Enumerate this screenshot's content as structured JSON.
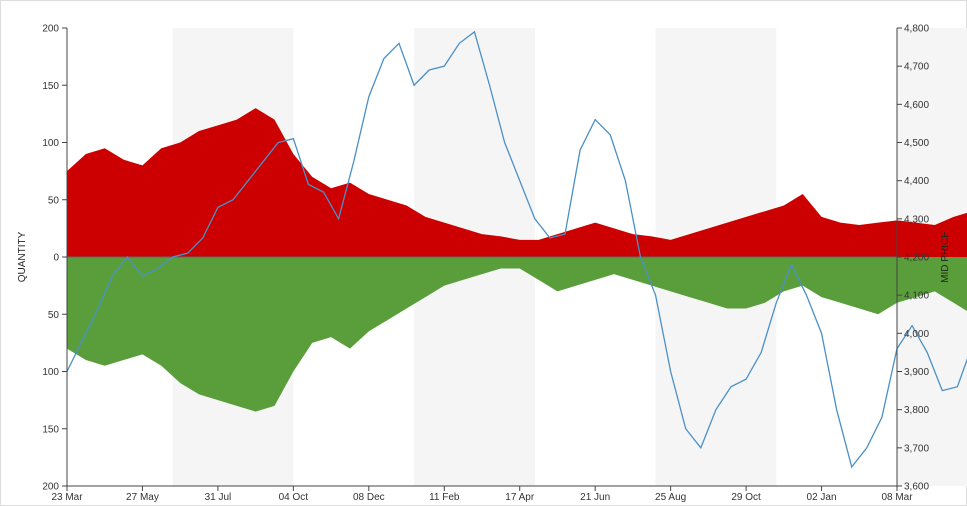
{
  "chart_data": {
    "type": "area",
    "title": "",
    "left_axis": {
      "label": "QUANTITY",
      "ticks": [
        "200",
        "150",
        "100",
        "50",
        "0",
        "50",
        "100",
        "150",
        "200"
      ],
      "range": [
        -200,
        200
      ]
    },
    "right_axis": {
      "label": "MID PRICE",
      "ticks": [
        "4,800",
        "4,700",
        "4,600",
        "4,500",
        "4,400",
        "4,300",
        "4,200",
        "4,100",
        "4,000",
        "3,900",
        "3,800",
        "3,700",
        "3,600"
      ],
      "range": [
        3600,
        4800
      ]
    },
    "x_ticks": [
      "23 Mar",
      "27 May",
      "31 Jul",
      "04 Oct",
      "08 Dec",
      "11 Feb",
      "17 Apr",
      "21 Jun",
      "25 Aug",
      "29 Oct",
      "02 Jan",
      "08 Mar"
    ],
    "shaded_bands": [
      [
        1.4,
        3.0
      ],
      [
        4.6,
        6.2
      ],
      [
        7.8,
        9.4
      ],
      [
        11.0,
        12.6
      ]
    ],
    "colors": {
      "bid": "#cc0000",
      "ask": "#5a9e3c",
      "price": "#4a90c8",
      "band": "#f5f5f5",
      "axis": "#444444"
    },
    "series": [
      {
        "name": "",
        "x": [
          0,
          0.25,
          0.5,
          0.75,
          1,
          1.25,
          1.5,
          1.75,
          2,
          2.25,
          2.5,
          2.75,
          3,
          3.25,
          3.5,
          3.75,
          4,
          4.25,
          4.5,
          4.75,
          5,
          5.25,
          5.5,
          5.75,
          6,
          6.25,
          6.5,
          6.75,
          7,
          7.25,
          7.5,
          7.75,
          8,
          8.25,
          8.5,
          8.75,
          9,
          9.25,
          9.5,
          9.75,
          10,
          10.25,
          10.5,
          10.75,
          11,
          11.25,
          11.5,
          11.75,
          12,
          12.25,
          12.5,
          12.75
        ],
        "values": [
          75,
          90,
          95,
          85,
          80,
          95,
          100,
          110,
          115,
          120,
          130,
          120,
          90,
          70,
          60,
          65,
          55,
          50,
          45,
          35,
          30,
          25,
          20,
          18,
          15,
          15,
          20,
          25,
          30,
          25,
          20,
          18,
          15,
          20,
          25,
          30,
          35,
          40,
          45,
          55,
          35,
          30,
          28,
          30,
          32,
          30,
          28,
          35,
          40,
          45,
          50,
          65
        ]
      },
      {
        "name": "",
        "x": [
          0,
          0.25,
          0.5,
          0.75,
          1,
          1.25,
          1.5,
          1.75,
          2,
          2.25,
          2.5,
          2.75,
          3,
          3.25,
          3.5,
          3.75,
          4,
          4.25,
          4.5,
          4.75,
          5,
          5.25,
          5.5,
          5.75,
          6,
          6.25,
          6.5,
          6.75,
          7,
          7.25,
          7.5,
          7.75,
          8,
          8.25,
          8.5,
          8.75,
          9,
          9.25,
          9.5,
          9.75,
          10,
          10.25,
          10.5,
          10.75,
          11,
          11.25,
          11.5,
          11.75,
          12,
          12.25,
          12.5,
          12.75
        ],
        "values": [
          -80,
          -90,
          -95,
          -90,
          -85,
          -95,
          -110,
          -120,
          -125,
          -130,
          -135,
          -130,
          -100,
          -75,
          -70,
          -80,
          -65,
          -55,
          -45,
          -35,
          -25,
          -20,
          -15,
          -10,
          -10,
          -20,
          -30,
          -25,
          -20,
          -15,
          -20,
          -25,
          -30,
          -35,
          -40,
          -45,
          -45,
          -40,
          -30,
          -25,
          -35,
          -40,
          -45,
          -50,
          -40,
          -35,
          -30,
          -40,
          -50,
          -55,
          -60,
          -70
        ]
      },
      {
        "name": "",
        "x": [
          0,
          0.2,
          0.4,
          0.6,
          0.8,
          1.0,
          1.2,
          1.4,
          1.6,
          1.8,
          2.0,
          2.2,
          2.4,
          2.6,
          2.8,
          3.0,
          3.2,
          3.4,
          3.6,
          3.8,
          4.0,
          4.2,
          4.4,
          4.6,
          4.8,
          5.0,
          5.2,
          5.4,
          5.6,
          5.8,
          6.0,
          6.2,
          6.4,
          6.6,
          6.8,
          7.0,
          7.2,
          7.4,
          7.6,
          7.8,
          8.0,
          8.2,
          8.4,
          8.6,
          8.8,
          9.0,
          9.2,
          9.4,
          9.6,
          9.8,
          10.0,
          10.2,
          10.4,
          10.6,
          10.8,
          11.0,
          11.2,
          11.4,
          11.6,
          11.8,
          12.0,
          12.2,
          12.4,
          12.6,
          12.75
        ],
        "values": [
          3900,
          3980,
          4060,
          4150,
          4200,
          4150,
          4170,
          4200,
          4210,
          4250,
          4330,
          4350,
          4400,
          4450,
          4500,
          4510,
          4390,
          4370,
          4300,
          4450,
          4620,
          4720,
          4760,
          4650,
          4690,
          4700,
          4760,
          4790,
          4650,
          4500,
          4400,
          4300,
          4250,
          4260,
          4480,
          4560,
          4520,
          4400,
          4200,
          4100,
          3900,
          3750,
          3700,
          3800,
          3860,
          3880,
          3950,
          4080,
          4180,
          4100,
          4000,
          3800,
          3650,
          3700,
          3780,
          3960,
          4020,
          3950,
          3850,
          3860,
          3970,
          4050,
          4080,
          3960,
          3900
        ]
      }
    ]
  }
}
